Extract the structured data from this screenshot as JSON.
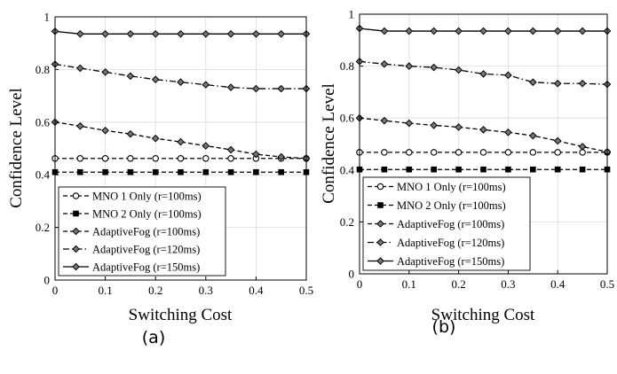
{
  "chart_data": [
    {
      "type": "line",
      "caption": "(a)",
      "xlabel": "Switching Cost",
      "ylabel": "Confidence Level",
      "xlim": [
        0,
        0.5
      ],
      "ylim": [
        0,
        1
      ],
      "xticks": [
        "0",
        "0.1",
        "0.2",
        "0.3",
        "0.4",
        "0.5"
      ],
      "yticks": [
        "0",
        "0.2",
        "0.4",
        "0.6",
        "0.8",
        "1"
      ],
      "grid": true,
      "legend_position": "bottom-left",
      "x": [
        0,
        0.05,
        0.1,
        0.15,
        0.2,
        0.25,
        0.3,
        0.35,
        0.4,
        0.45,
        0.5
      ],
      "series": [
        {
          "name": "MNO 1 Only (r=100ms)",
          "marker": "circle",
          "dash": "dashed",
          "values": [
            0.462,
            0.462,
            0.462,
            0.462,
            0.462,
            0.462,
            0.462,
            0.462,
            0.462,
            0.462,
            0.462
          ]
        },
        {
          "name": "MNO 2 Only (r=100ms)",
          "marker": "square",
          "dash": "dashed",
          "values": [
            0.41,
            0.41,
            0.41,
            0.41,
            0.41,
            0.41,
            0.41,
            0.41,
            0.41,
            0.41,
            0.41
          ]
        },
        {
          "name": "AdaptiveFog (r=100ms)",
          "marker": "diamond",
          "dash": "dashed",
          "values": [
            0.6,
            0.585,
            0.568,
            0.555,
            0.538,
            0.525,
            0.51,
            0.495,
            0.478,
            0.468,
            0.462
          ]
        },
        {
          "name": "AdaptiveFog (r=120ms)",
          "marker": "diamond",
          "dash": "dashdot",
          "values": [
            0.82,
            0.805,
            0.79,
            0.775,
            0.762,
            0.752,
            0.742,
            0.732,
            0.727,
            0.727,
            0.727
          ]
        },
        {
          "name": "AdaptiveFog (r=150ms)",
          "marker": "diamond",
          "dash": "solid",
          "values": [
            0.945,
            0.935,
            0.935,
            0.935,
            0.935,
            0.935,
            0.935,
            0.935,
            0.935,
            0.935,
            0.935
          ]
        }
      ]
    },
    {
      "type": "line",
      "caption": "(b)",
      "xlabel": "Switching Cost",
      "ylabel": "Confidence Level",
      "xlim": [
        0,
        0.5
      ],
      "ylim": [
        0,
        1
      ],
      "xticks": [
        "0",
        "0.1",
        "0.2",
        "0.3",
        "0.4",
        "0.5"
      ],
      "yticks": [
        "0",
        "0.2",
        "0.4",
        "0.6",
        "0.8",
        "1"
      ],
      "grid": true,
      "legend_position": "bottom-left",
      "x": [
        0,
        0.05,
        0.1,
        0.15,
        0.2,
        0.25,
        0.3,
        0.35,
        0.4,
        0.45,
        0.5
      ],
      "series": [
        {
          "name": "MNO 1 Only (r=100ms)",
          "marker": "circle",
          "dash": "dashed",
          "values": [
            0.468,
            0.468,
            0.468,
            0.468,
            0.468,
            0.468,
            0.468,
            0.468,
            0.468,
            0.468,
            0.468
          ]
        },
        {
          "name": "MNO 2 Only (r=100ms)",
          "marker": "square",
          "dash": "dashed",
          "values": [
            0.402,
            0.402,
            0.402,
            0.402,
            0.402,
            0.402,
            0.402,
            0.402,
            0.402,
            0.402,
            0.402
          ]
        },
        {
          "name": "AdaptiveFog (r=100ms)",
          "marker": "diamond",
          "dash": "dashed",
          "values": [
            0.6,
            0.59,
            0.58,
            0.572,
            0.565,
            0.555,
            0.545,
            0.532,
            0.512,
            0.49,
            0.47
          ]
        },
        {
          "name": "AdaptiveFog (r=120ms)",
          "marker": "diamond",
          "dash": "dashdot",
          "values": [
            0.818,
            0.808,
            0.8,
            0.795,
            0.785,
            0.77,
            0.765,
            0.738,
            0.733,
            0.733,
            0.73
          ]
        },
        {
          "name": "AdaptiveFog (r=150ms)",
          "marker": "diamond",
          "dash": "solid",
          "values": [
            0.945,
            0.935,
            0.935,
            0.935,
            0.935,
            0.935,
            0.935,
            0.935,
            0.935,
            0.935,
            0.935
          ]
        }
      ]
    }
  ]
}
